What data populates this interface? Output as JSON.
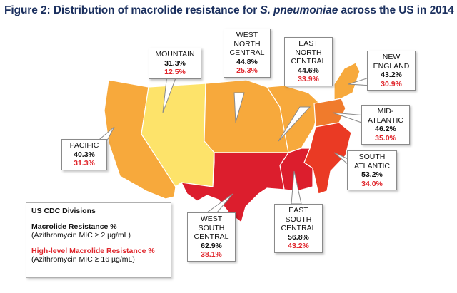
{
  "figure": {
    "title_prefix": "Figure 2: Distribution of macrolide resistance for ",
    "title_species": "S. pneumoniae",
    "title_suffix": " across the US in 2014"
  },
  "colors": {
    "pacific": "#f7a93c",
    "mountain": "#fde36a",
    "west_north_central": "#f7a93c",
    "east_north_central": "#f7a93c",
    "new_england": "#f7a93c",
    "mid_atlantic": "#f07b2c",
    "south_atlantic": "#ea3a24",
    "east_south_central": "#dc1e2d",
    "west_south_central": "#dc1e2d",
    "highlight_red": "#e0262c"
  },
  "divisions": [
    {
      "key": "pacific",
      "name": "PACIFIC",
      "macrolide": "40.3%",
      "high_level": "31.3%"
    },
    {
      "key": "mountain",
      "name": "MOUNTAIN",
      "macrolide": "31.3%",
      "high_level": "12.5%"
    },
    {
      "key": "west_north_central",
      "name": "WEST\nNORTH\nCENTRAL",
      "macrolide": "44.8%",
      "high_level": "25.3%"
    },
    {
      "key": "east_north_central",
      "name": "EAST\nNORTH\nCENTRAL",
      "macrolide": "44.6%",
      "high_level": "33.9%"
    },
    {
      "key": "new_england",
      "name": "NEW\nENGLAND",
      "macrolide": "43.2%",
      "high_level": "30.9%"
    },
    {
      "key": "mid_atlantic",
      "name": "MID-\nATLANTIC",
      "macrolide": "46.2%",
      "high_level": "35.0%"
    },
    {
      "key": "south_atlantic",
      "name": "SOUTH\nATLANTIC",
      "macrolide": "53.2%",
      "high_level": "34.0%"
    },
    {
      "key": "east_south_central",
      "name": "EAST\nSOUTH\nCENTRAL",
      "macrolide": "56.8%",
      "high_level": "43.2%"
    },
    {
      "key": "west_south_central",
      "name": "WEST\nSOUTH\nCENTRAL",
      "macrolide": "62.9%",
      "high_level": "38.1%"
    }
  ],
  "legend": {
    "title": "US CDC Divisions",
    "macrolide_label": "Macrolide Resistance %",
    "macrolide_sub": "(Azithromycin MIC ≥ 2 µg/mL)",
    "high_label": "High-level Macrolide Resistance %",
    "high_sub": "(Azithromycin MIC ≥ 16 µg/mL)"
  }
}
